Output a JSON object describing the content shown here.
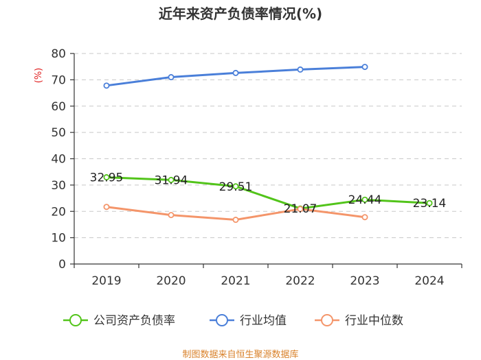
{
  "chart_data": {
    "type": "line",
    "title": "近年来资产负债率情况(%)",
    "ylabel": "(%)",
    "xlabel": "",
    "ylim": [
      0,
      80
    ],
    "yticks": [
      0,
      10,
      20,
      30,
      40,
      50,
      60,
      70,
      80
    ],
    "categories": [
      "2019",
      "2020",
      "2021",
      "2022",
      "2023",
      "2024"
    ],
    "grid": true,
    "legend": "bottom",
    "series": [
      {
        "name": "公司资产负债率",
        "color": "#52c41a",
        "values": [
          32.95,
          31.94,
          29.51,
          21.07,
          24.44,
          23.14
        ],
        "labels": [
          "32.95",
          "31.94",
          "29.51",
          "21.07",
          "24.44",
          "23.14"
        ]
      },
      {
        "name": "行业均值",
        "color": "#4a7fd9",
        "values": [
          67.8,
          71.0,
          72.6,
          73.9,
          74.9,
          null
        ]
      },
      {
        "name": "行业中位数",
        "color": "#f4956a",
        "values": [
          21.7,
          18.6,
          16.8,
          20.9,
          17.8,
          null
        ]
      }
    ]
  },
  "source": "制图数据来自恒生聚源数据库"
}
